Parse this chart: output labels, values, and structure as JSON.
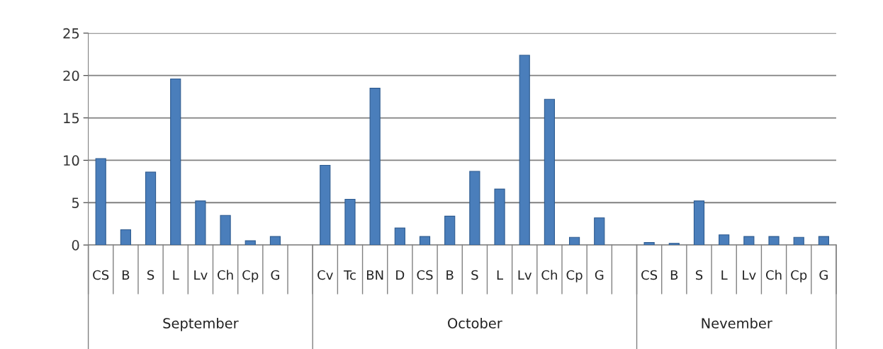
{
  "chart_data": {
    "type": "bar",
    "categories": [
      "CS",
      "B",
      "S",
      "L",
      "Lv",
      "Ch",
      "Cp",
      "G",
      null,
      "Cv",
      "Tc",
      "BN",
      "D",
      "CS",
      "B",
      "S",
      "L",
      "Lv",
      "Ch",
      "Cp",
      "G",
      null,
      "CS",
      "B",
      "S",
      "L",
      "Lv",
      "Ch",
      "Cp",
      "G"
    ],
    "values": [
      10.2,
      1.8,
      8.6,
      19.6,
      5.2,
      3.5,
      0.5,
      1.0,
      null,
      9.4,
      5.4,
      18.5,
      2.0,
      1.0,
      3.4,
      8.7,
      6.6,
      22.4,
      17.2,
      0.9,
      3.2,
      null,
      0.3,
      0.2,
      5.2,
      1.2,
      1.0,
      1.0,
      0.9,
      1.0
    ],
    "color": "#4a7ebb",
    "ylim": [
      0,
      25
    ],
    "yticks": [
      0,
      5,
      10,
      15,
      20,
      25
    ],
    "grid": "y",
    "legend": false,
    "annotations": [
      "September",
      "October",
      "Nevember"
    ]
  }
}
